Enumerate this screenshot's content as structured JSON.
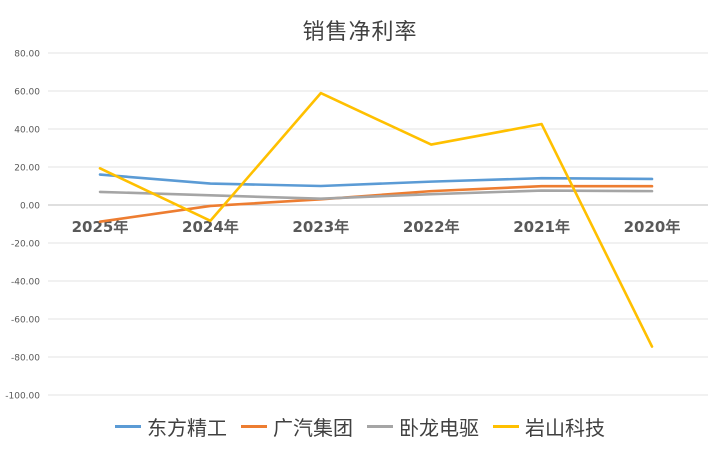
{
  "chart_data": {
    "type": "line",
    "title": "销售净利率",
    "categories": [
      "2025年",
      "2024年",
      "2023年",
      "2022年",
      "2021年",
      "2020年"
    ],
    "series": [
      {
        "name": "东方精工",
        "color": "#5B9BD5",
        "values": [
          16.0,
          11.3,
          10.0,
          12.3,
          14.1,
          13.7
        ]
      },
      {
        "name": "广汽集团",
        "color": "#ED7D31",
        "values": [
          -8.8,
          -0.5,
          3.0,
          7.3,
          9.9,
          9.9
        ]
      },
      {
        "name": "卧龙电驱",
        "color": "#A5A5A5",
        "values": [
          6.9,
          5.1,
          3.3,
          5.7,
          7.6,
          7.3
        ]
      },
      {
        "name": "岩山科技",
        "color": "#FFC000",
        "values": [
          19.3,
          -8.3,
          58.9,
          31.8,
          42.6,
          -74.5
        ]
      }
    ],
    "yticks": [
      "80.00",
      "60.00",
      "40.00",
      "20.00",
      "0.00",
      "-20.00",
      "-40.00",
      "-60.00",
      "-80.00",
      "-100.00"
    ],
    "ylim": [
      -100,
      80
    ],
    "grid": true,
    "legend_position": "bottom"
  }
}
